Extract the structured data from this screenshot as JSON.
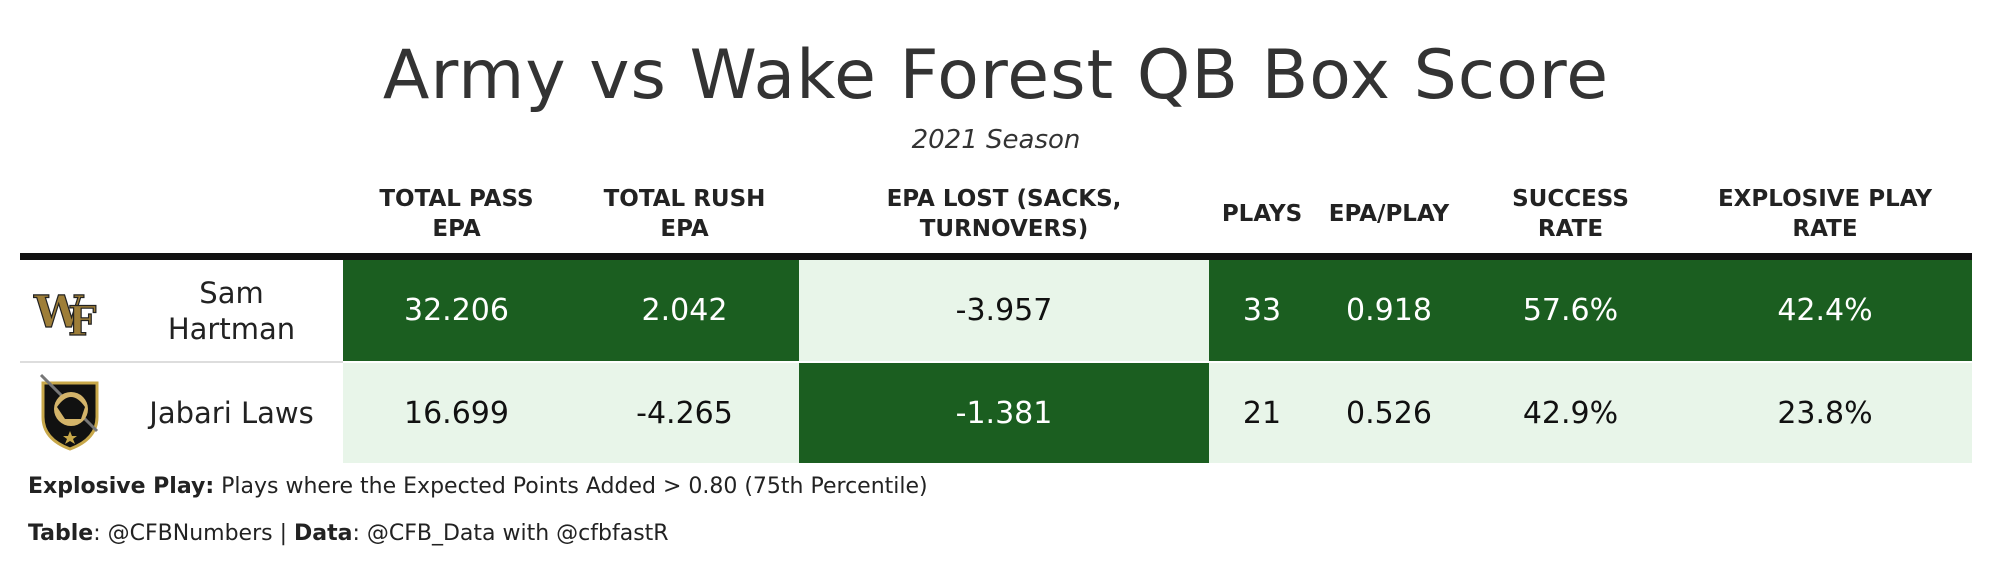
{
  "title": "Army vs Wake Forest QB Box Score",
  "subtitle": "2021 Season",
  "colors": {
    "dark_green": "#1b5e20",
    "light_green": "#e8f5e9",
    "header_rule": "#111111"
  },
  "chart_data": {
    "type": "table",
    "columns": [
      {
        "key": "pass_epa",
        "label": "TOTAL PASS EPA",
        "lines": [
          "TOTAL PASS",
          "EPA"
        ]
      },
      {
        "key": "rush_epa",
        "label": "TOTAL RUSH EPA",
        "lines": [
          "TOTAL RUSH",
          "EPA"
        ]
      },
      {
        "key": "epa_lost",
        "label": "EPA LOST (SACKS, TURNOVERS)",
        "lines": [
          "EPA LOST (SACKS,",
          "TURNOVERS)"
        ]
      },
      {
        "key": "plays",
        "label": "PLAYS",
        "lines": [
          "PLAYS"
        ]
      },
      {
        "key": "epa_play",
        "label": "EPA/PLAY",
        "lines": [
          "EPA/PLAY"
        ]
      },
      {
        "key": "success_rate",
        "label": "SUCCESS RATE",
        "lines": [
          "SUCCESS",
          "RATE"
        ]
      },
      {
        "key": "explosive_rate",
        "label": "EXPLOSIVE PLAY RATE",
        "lines": [
          "EXPLOSIVE PLAY",
          "RATE"
        ]
      }
    ],
    "rows": [
      {
        "player": "Sam Hartman",
        "player_lines": [
          "Sam",
          "Hartman"
        ],
        "logo": "wake-forest-logo",
        "values": {
          "pass_epa": "32.206",
          "rush_epa": "2.042",
          "epa_lost": "-3.957",
          "plays": "33",
          "epa_play": "0.918",
          "success_rate": "57.6%",
          "explosive_rate": "42.4%"
        },
        "numeric": {
          "pass_epa": 32.206,
          "rush_epa": 2.042,
          "epa_lost": -3.957,
          "plays": 33,
          "epa_play": 0.918,
          "success_rate": 57.6,
          "explosive_rate": 42.4
        },
        "shade": {
          "pass_epa": "dark",
          "rush_epa": "dark",
          "epa_lost": "light",
          "plays": "dark",
          "epa_play": "dark",
          "success_rate": "dark",
          "explosive_rate": "dark"
        }
      },
      {
        "player": "Jabari Laws",
        "player_lines": [
          "Jabari Laws"
        ],
        "logo": "army-black-knights-logo",
        "values": {
          "pass_epa": "16.699",
          "rush_epa": "-4.265",
          "epa_lost": "-1.381",
          "plays": "21",
          "epa_play": "0.526",
          "success_rate": "42.9%",
          "explosive_rate": "23.8%"
        },
        "numeric": {
          "pass_epa": 16.699,
          "rush_epa": -4.265,
          "epa_lost": -1.381,
          "plays": 21,
          "epa_play": 0.526,
          "success_rate": 42.9,
          "explosive_rate": 23.8
        },
        "shade": {
          "pass_epa": "light",
          "rush_epa": "light",
          "epa_lost": "dark",
          "plays": "light",
          "epa_play": "light",
          "success_rate": "light",
          "explosive_rate": "light"
        }
      }
    ]
  },
  "footnote": {
    "explosive_label": "Explosive Play:",
    "explosive_text": " Plays where the Expected Points Added > 0.80 (75th Percentile)",
    "table_label": "Table",
    "table_text": ": @CFBNumbers | ",
    "data_label": "Data",
    "data_text": ": @CFB_Data with @cfbfastR"
  }
}
